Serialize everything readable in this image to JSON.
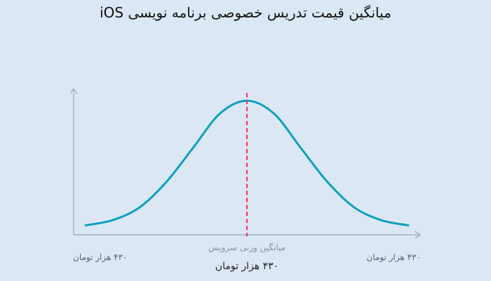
{
  "chart_data": {
    "type": "line",
    "title": "میانگین قیمت تدریس خصوصی برنامه نویسی iOS",
    "colors": {
      "curve": "#0aa0c0",
      "mean_line": "#ff2d55",
      "axis": "#9cb4c6"
    },
    "x_labels": {
      "left": "۴۳۰ هزار تومان",
      "right": "۴۳۰ هزار تومان",
      "center_caption": "میانگین وزنی سرویس",
      "center_value": "۴۳۰ هزار تومان"
    },
    "x": [
      -3,
      -2.5,
      -2,
      -1.5,
      -1,
      -0.5,
      0,
      0.5,
      1,
      1.5,
      2,
      2.5,
      3
    ],
    "y": [
      0.02,
      0.06,
      0.16,
      0.36,
      0.63,
      0.9,
      1.0,
      0.9,
      0.63,
      0.36,
      0.16,
      0.06,
      0.02
    ],
    "mean_x": 0,
    "xlim": [
      -3,
      3
    ],
    "ylim": [
      0,
      1.05
    ],
    "grid": false,
    "legend": "none"
  }
}
